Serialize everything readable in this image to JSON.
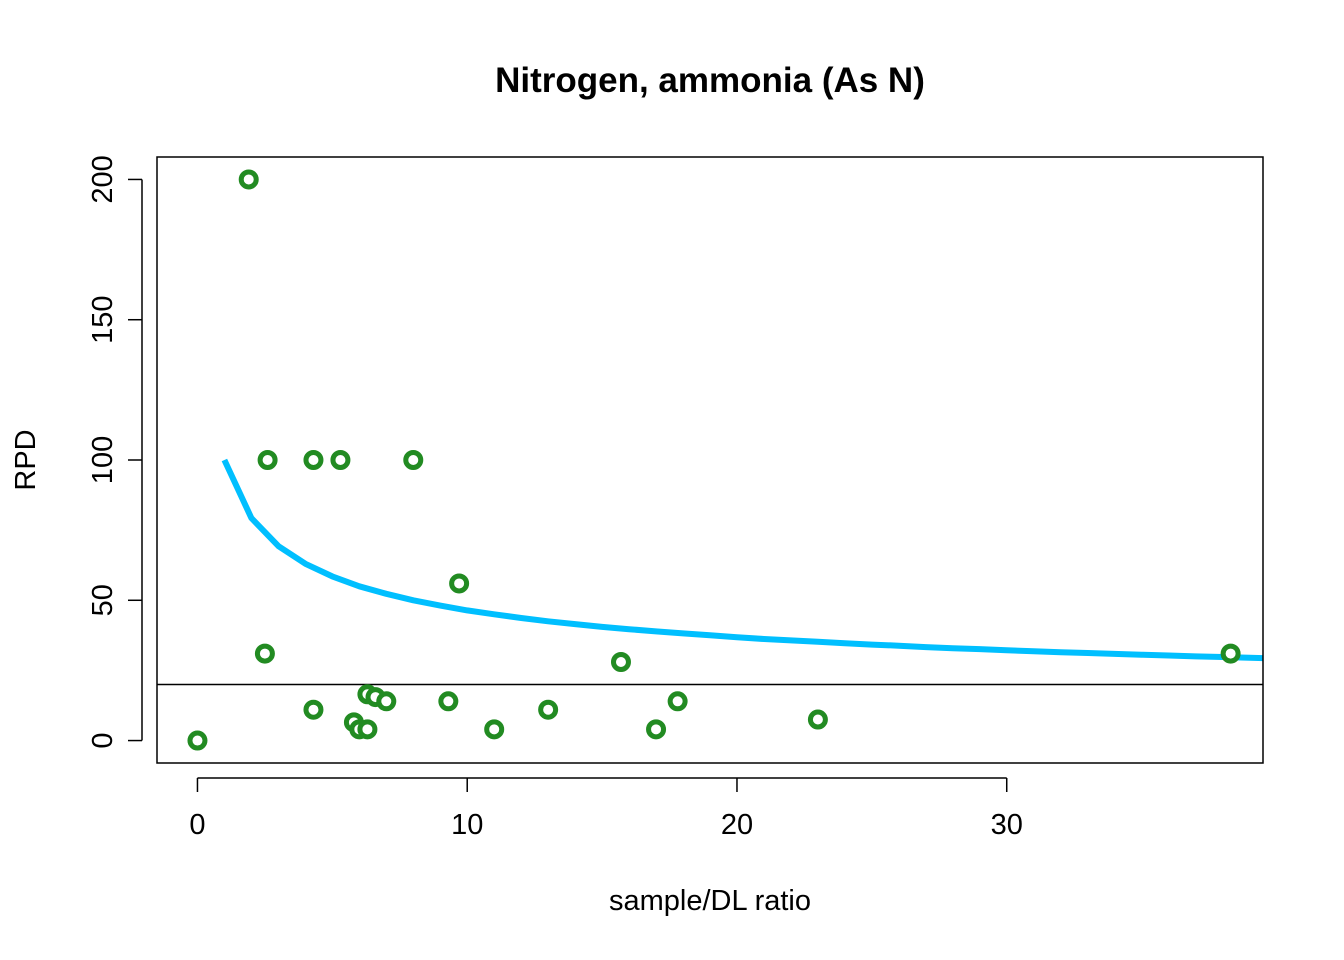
{
  "chart_data": {
    "type": "scatter",
    "title": "Nitrogen, ammonia (As N)",
    "xlabel": "sample/DL ratio",
    "ylabel": "RPD",
    "xlim": [
      -1.5,
      39.5
    ],
    "ylim": [
      -8,
      208
    ],
    "x_ticks": [
      0,
      10,
      20,
      30
    ],
    "y_ticks": [
      0,
      50,
      100,
      150,
      200
    ],
    "grid": false,
    "legend": "none",
    "point_color": "#228B22",
    "curve_color": "#00BFFF",
    "reference_line": {
      "y": 20,
      "color": "#000000"
    },
    "points": [
      {
        "x": 0,
        "y": 0
      },
      {
        "x": 1.9,
        "y": 200
      },
      {
        "x": 2.5,
        "y": 31
      },
      {
        "x": 2.6,
        "y": 100
      },
      {
        "x": 4.3,
        "y": 100
      },
      {
        "x": 4.3,
        "y": 11
      },
      {
        "x": 5.3,
        "y": 100
      },
      {
        "x": 5.8,
        "y": 6.5
      },
      {
        "x": 6.0,
        "y": 4
      },
      {
        "x": 6.3,
        "y": 4
      },
      {
        "x": 6.3,
        "y": 16.5
      },
      {
        "x": 6.6,
        "y": 15.5
      },
      {
        "x": 7.0,
        "y": 14
      },
      {
        "x": 8.0,
        "y": 100
      },
      {
        "x": 9.3,
        "y": 14
      },
      {
        "x": 9.7,
        "y": 56
      },
      {
        "x": 11.0,
        "y": 4
      },
      {
        "x": 13.0,
        "y": 11
      },
      {
        "x": 15.7,
        "y": 28
      },
      {
        "x": 17.0,
        "y": 4
      },
      {
        "x": 17.8,
        "y": 14
      },
      {
        "x": 23.0,
        "y": 7.5
      },
      {
        "x": 38.3,
        "y": 31
      }
    ],
    "curve": {
      "x": [
        1,
        2,
        3,
        4,
        5,
        6,
        7,
        8,
        9,
        10,
        11,
        12,
        13,
        14,
        15,
        16,
        17,
        18,
        19,
        20,
        21,
        22,
        23,
        24,
        25,
        26,
        27,
        28,
        29,
        30,
        31,
        32,
        33,
        34,
        35,
        36,
        37,
        38,
        39,
        39.5
      ],
      "y": [
        100,
        79.3,
        69.3,
        63.0,
        58.5,
        55.0,
        52.3,
        50.0,
        48.1,
        46.4,
        45.0,
        43.7,
        42.5,
        41.5,
        40.5,
        39.7,
        38.9,
        38.2,
        37.5,
        36.8,
        36.2,
        35.7,
        35.2,
        34.7,
        34.2,
        33.8,
        33.3,
        32.9,
        32.6,
        32.2,
        31.8,
        31.5,
        31.2,
        30.9,
        30.6,
        30.3,
        30.0,
        29.8,
        29.5,
        29.4
      ]
    }
  }
}
